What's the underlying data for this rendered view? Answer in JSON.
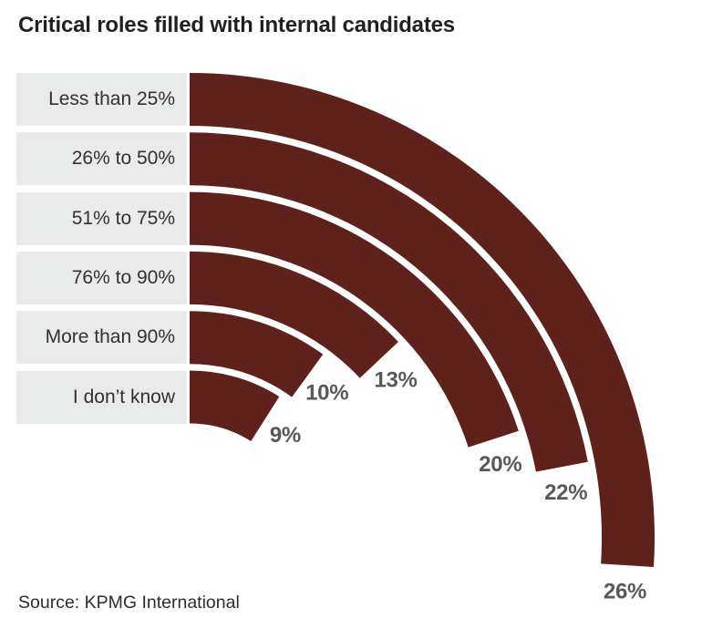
{
  "title": "Critical roles filled with internal candidates",
  "source": {
    "label": "Source:",
    "name": "KPMG International"
  },
  "chart_data": {
    "type": "radial-bar",
    "title": "Critical roles filled with internal candidates",
    "categories": [
      "Less than 25%",
      "26% to 50%",
      "51% to 75%",
      "76% to 90%",
      "More than 90%",
      "I don’t know"
    ],
    "values": [
      26,
      22,
      20,
      13,
      10,
      9
    ],
    "unit": "%",
    "value_labels": [
      "26%",
      "22%",
      "20%",
      "13%",
      "10%",
      "9%"
    ],
    "angle_start": "12-o-clock",
    "direction": "clockwise",
    "degrees_per_percent": 3.6,
    "legend_position": "left-stacked-boxes",
    "grid": false,
    "colors": {
      "bar": "#5e211c",
      "label_box_bg": "#e9ebea",
      "label_text": "#313133",
      "value_text": "#58595b",
      "title_text": "#231f20",
      "source_text": "#2d2d2d",
      "background": "#ffffff"
    }
  }
}
